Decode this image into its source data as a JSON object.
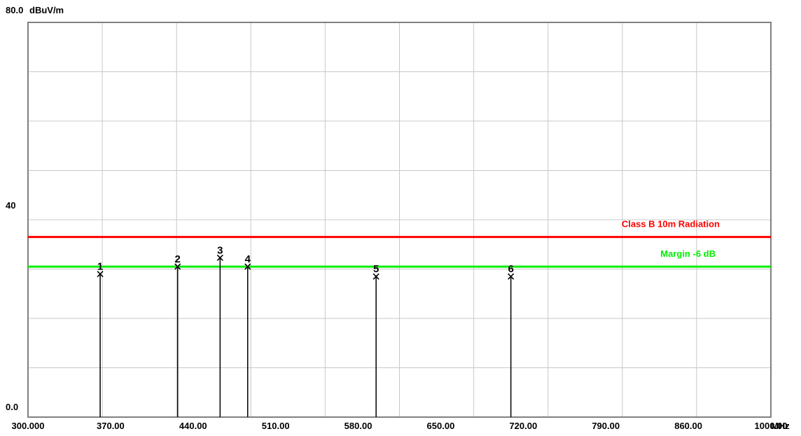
{
  "chart_data": {
    "type": "scatter",
    "title": "",
    "xlabel": "",
    "ylabel": "",
    "y_unit": "dBuV/m",
    "x_unit": "MHz",
    "xlim": [
      300,
      1000
    ],
    "ylim": [
      0,
      80
    ],
    "x_ticks": [
      300,
      370,
      440,
      510,
      580,
      650,
      720,
      790,
      860,
      1000
    ],
    "x_tick_labels": [
      "300.000",
      "370.00",
      "440.00",
      "510.00",
      "580.00",
      "650.00",
      "720.00",
      "790.00",
      "860.00",
      "1000.00"
    ],
    "y_tick_labels": [
      {
        "value": 80,
        "label": "80.0"
      },
      {
        "value": 40,
        "label": "40"
      },
      {
        "value": 0,
        "label": "0.0"
      }
    ],
    "grid": true,
    "limit_lines": [
      {
        "name": "Class B 10m Radiation",
        "y": 36.5,
        "color": "#ff0000"
      },
      {
        "name": "Margin -6 dB",
        "y": 30.5,
        "color": "#00ee00"
      }
    ],
    "markers": [
      {
        "label": "1",
        "x": 368,
        "y": 29.0
      },
      {
        "label": "2",
        "x": 441,
        "y": 30.5
      },
      {
        "label": "3",
        "x": 481,
        "y": 32.3
      },
      {
        "label": "4",
        "x": 507,
        "y": 30.5
      },
      {
        "label": "5",
        "x": 628,
        "y": 28.5
      },
      {
        "label": "6",
        "x": 755,
        "y": 28.5
      }
    ]
  }
}
